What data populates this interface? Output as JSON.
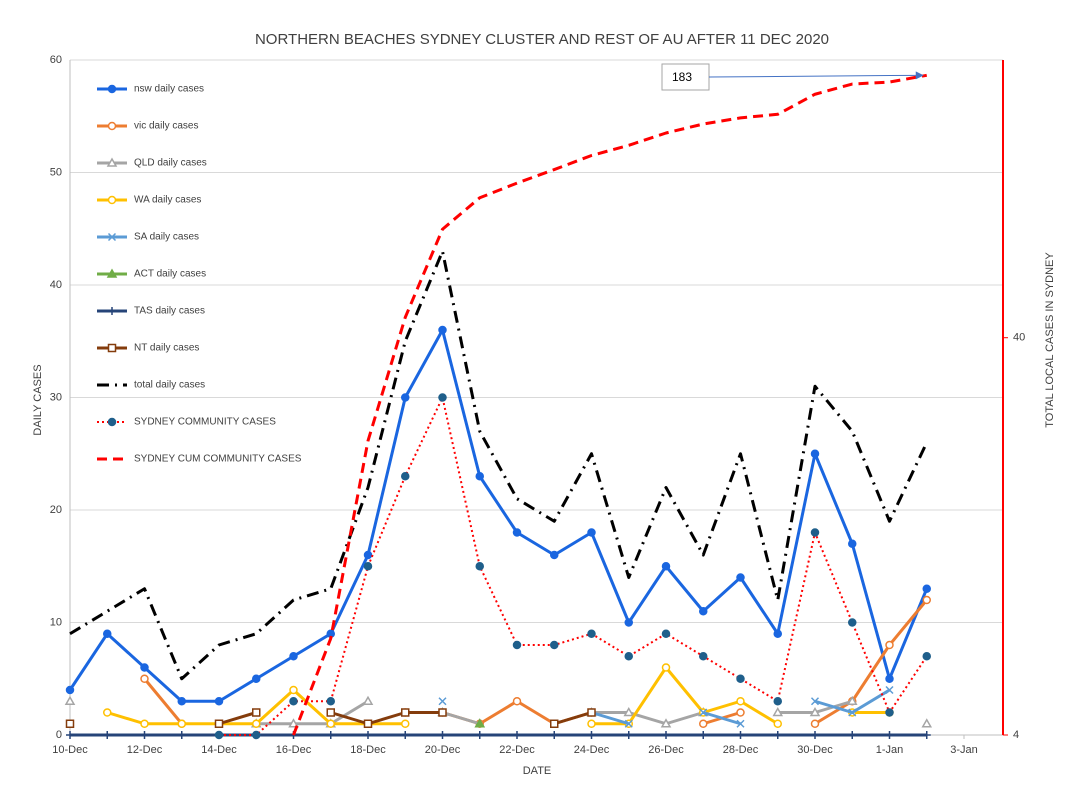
{
  "chart_data": {
    "type": "line",
    "title": "NORTHERN BEACHES SYDNEY CLUSTER AND REST OF AU AFTER 11 DEC 2020",
    "x_label": "DATE",
    "y_label": "DAILY CASES",
    "y2_label": "TOTAL LOCAL CASES IN SYDNEY",
    "categories": [
      "10-Dec",
      null,
      "12-Dec",
      null,
      "14-Dec",
      null,
      "16-Dec",
      null,
      "18-Dec",
      null,
      "20-Dec",
      null,
      "22-Dec",
      null,
      "24-Dec",
      null,
      "26-Dec",
      null,
      "28-Dec",
      null,
      "30-Dec",
      null,
      "1-Jan",
      null,
      "3-Jan"
    ],
    "ylim": [
      0,
      60
    ],
    "yticks": [
      0,
      10,
      20,
      30,
      40,
      50,
      60
    ],
    "y2lim": [
      4,
      200
    ],
    "y2ticks": [
      4,
      40
    ],
    "y2_log": true,
    "y2_color": "#ff0000",
    "grid": true,
    "legend": "upper left",
    "annotation": {
      "text": "183",
      "color": "#4472c4"
    },
    "series": [
      {
        "name": "nsw daily cases",
        "color": "#1a66e0",
        "marker": "circle",
        "dash": "solid",
        "width": 3,
        "values": [
          4,
          9,
          6,
          3,
          3,
          5,
          7,
          9,
          16,
          30,
          36,
          23,
          18,
          16,
          18,
          10,
          15,
          11,
          14,
          9,
          25,
          17,
          5,
          13,
          null
        ]
      },
      {
        "name": "vic daily cases",
        "color": "#ed7d31",
        "marker": "open-circle",
        "dash": "solid",
        "width": 3,
        "values": [
          null,
          null,
          5,
          1,
          null,
          null,
          null,
          null,
          null,
          2,
          2,
          1,
          3,
          1,
          2,
          null,
          null,
          1,
          2,
          null,
          1,
          3,
          8,
          12,
          null
        ]
      },
      {
        "name": "QLD daily cases",
        "color": "#a5a5a5",
        "marker": "open-triangle",
        "dash": "solid",
        "width": 3,
        "values": [
          3,
          null,
          null,
          null,
          null,
          1,
          1,
          1,
          3,
          null,
          2,
          1,
          null,
          null,
          2,
          2,
          1,
          2,
          null,
          2,
          2,
          3,
          null,
          1,
          null
        ]
      },
      {
        "name": "WA  daily cases",
        "color": "#ffc000",
        "marker": "open-circle",
        "dash": "solid",
        "width": 3,
        "values": [
          null,
          2,
          1,
          1,
          1,
          1,
          4,
          1,
          1,
          1,
          null,
          null,
          null,
          null,
          1,
          1,
          6,
          2,
          3,
          1,
          null,
          2,
          2,
          null,
          null
        ]
      },
      {
        "name": "SA  daily cases",
        "color": "#5b9bd5",
        "marker": "x",
        "dash": "solid",
        "width": 3,
        "values": [
          null,
          null,
          null,
          null,
          null,
          null,
          null,
          null,
          null,
          null,
          3,
          null,
          null,
          null,
          2,
          1,
          null,
          2,
          1,
          null,
          3,
          2,
          4,
          null,
          null
        ]
      },
      {
        "name": "ACT daily cases",
        "color": "#70ad47",
        "marker": "triangle",
        "dash": "solid",
        "width": 3,
        "values": [
          null,
          null,
          null,
          null,
          null,
          null,
          null,
          null,
          null,
          null,
          null,
          1,
          null,
          null,
          null,
          null,
          null,
          null,
          null,
          null,
          null,
          null,
          null,
          null,
          null
        ]
      },
      {
        "name": "TAS daily cases",
        "color": "#264478",
        "marker": "plus",
        "dash": "solid",
        "width": 3,
        "values": [
          0,
          0,
          0,
          0,
          0,
          0,
          0,
          0,
          0,
          0,
          0,
          0,
          0,
          0,
          0,
          0,
          0,
          0,
          0,
          0,
          0,
          0,
          0,
          0,
          null
        ]
      },
      {
        "name": "NT daily cases",
        "color": "#843c0c",
        "marker": "open-square",
        "dash": "solid",
        "width": 3,
        "values": [
          1,
          null,
          null,
          null,
          1,
          2,
          null,
          2,
          1,
          2,
          2,
          null,
          null,
          1,
          2,
          null,
          null,
          null,
          null,
          null,
          null,
          null,
          null,
          null,
          null
        ]
      },
      {
        "name": "total daily cases",
        "color": "#000000",
        "marker": "none",
        "dash": "dashdot",
        "width": 3,
        "values": [
          9,
          11,
          13,
          5,
          8,
          9,
          12,
          13,
          22,
          35,
          43,
          27,
          21,
          19,
          25,
          14,
          22,
          16,
          25,
          12,
          31,
          27,
          19,
          26,
          null
        ]
      },
      {
        "name": "SYDNEY COMMUNITY CASES",
        "color": "#ff0000",
        "marker_color": "#1f5f8b",
        "marker": "circle",
        "dash": "dotted",
        "width": 2,
        "values": [
          null,
          null,
          null,
          null,
          0,
          0,
          3,
          3,
          15,
          23,
          30,
          15,
          8,
          8,
          9,
          7,
          9,
          7,
          5,
          3,
          18,
          10,
          2,
          7,
          null
        ]
      },
      {
        "name": "SYDNEY CUM COMMUNITY CASES",
        "color": "#ff0000",
        "marker": "none",
        "dash": "dashed",
        "width": 3,
        "axis": "y2",
        "values": [
          null,
          null,
          null,
          null,
          null,
          null,
          4,
          7,
          22,
          45,
          75,
          90,
          98,
          106,
          115,
          122,
          131,
          138,
          143,
          146,
          164,
          174,
          176,
          183,
          null
        ]
      }
    ]
  }
}
